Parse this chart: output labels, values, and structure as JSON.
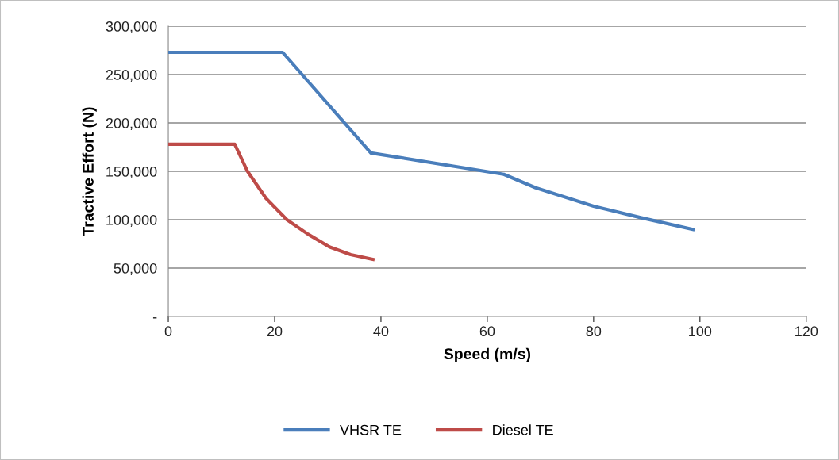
{
  "chart_data": {
    "type": "line",
    "xlabel": "Speed (m/s)",
    "ylabel": "Tractive Effort (N)",
    "xlim": [
      0,
      120
    ],
    "xticks": [
      0,
      20,
      40,
      60,
      80,
      100,
      120
    ],
    "ylim": [
      0,
      300000
    ],
    "yticks": [
      {
        "value": 0,
        "label": "-"
      },
      {
        "value": 50000,
        "label": "50,000"
      },
      {
        "value": 100000,
        "label": "100,000"
      },
      {
        "value": 150000,
        "label": "150,000"
      },
      {
        "value": 200000,
        "label": "200,000"
      },
      {
        "value": 250000,
        "label": "250,000"
      },
      {
        "value": 300000,
        "label": "300,000"
      }
    ],
    "grid": "y",
    "legend": "bottom",
    "marker": "none",
    "line_style": "solid",
    "series": [
      {
        "name": "VHSR TE",
        "color": "#4a7ebb",
        "x": [
          0,
          21.5,
          38.1,
          63.1,
          69.1,
          80.0,
          89.0,
          98.7
        ],
        "values": [
          273000,
          273000,
          169000,
          147000,
          133000,
          114000,
          102000,
          90000
        ]
      },
      {
        "name": "Diesel TE",
        "color": "#be4b48",
        "x": [
          0,
          12.5,
          14.9,
          18.4,
          22.3,
          26.3,
          30.3,
          34.3,
          38.5
        ],
        "values": [
          178000,
          178000,
          150000,
          122000,
          100000,
          85000,
          72000,
          64000,
          59000
        ]
      }
    ]
  }
}
